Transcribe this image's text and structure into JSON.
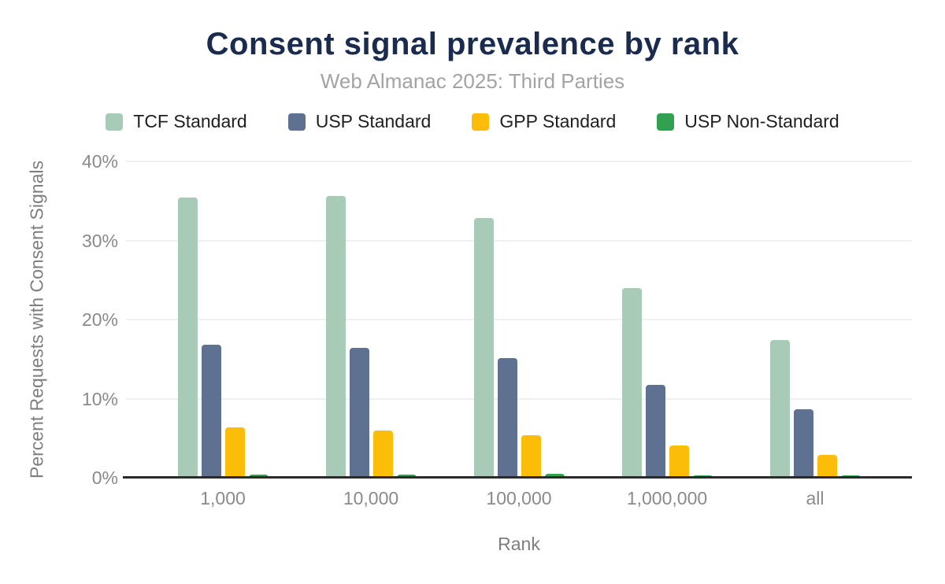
{
  "chart": {
    "title": "Consent signal prevalence by rank",
    "subtitle": "Web Almanac 2025: Third Parties",
    "xlabel": "Rank",
    "ylabel": "Percent Requests with Consent Signals"
  },
  "chart_data": {
    "type": "bar",
    "title": "Consent signal prevalence by rank",
    "subtitle": "Web Almanac 2025: Third Parties",
    "xlabel": "Rank",
    "ylabel": "Percent Requests with Consent Signals",
    "categories": [
      "1,000",
      "10,000",
      "100,000",
      "1,000,000",
      "all"
    ],
    "series": [
      {
        "name": "TCF Standard",
        "color": "#A8CBB8",
        "values": [
          35.4,
          35.6,
          32.8,
          24.0,
          17.4
        ]
      },
      {
        "name": "USP Standard",
        "color": "#5F7190",
        "values": [
          16.8,
          16.4,
          15.1,
          11.7,
          8.7
        ]
      },
      {
        "name": "GPP Standard",
        "color": "#FBBD08",
        "values": [
          6.4,
          6.0,
          5.4,
          4.1,
          2.9
        ]
      },
      {
        "name": "USP Non-Standard",
        "color": "#31A050",
        "values": [
          0.4,
          0.4,
          0.5,
          0.3,
          0.3
        ]
      }
    ],
    "ylim": [
      0,
      40
    ],
    "yticks": [
      0,
      10,
      20,
      30,
      40
    ],
    "ytick_labels": [
      "0%",
      "10%",
      "20%",
      "30%",
      "40%"
    ],
    "grid": true,
    "legend_position": "top"
  },
  "colors": {
    "title": "#1B2B4D",
    "subtitle": "#A3A3A3",
    "axis_text": "#8A8A8A",
    "axis_title_text": "#7E7E7E",
    "axis_line": "#2B2B2B",
    "gridline": "#F0F0F0",
    "background": "#FFFFFF"
  }
}
